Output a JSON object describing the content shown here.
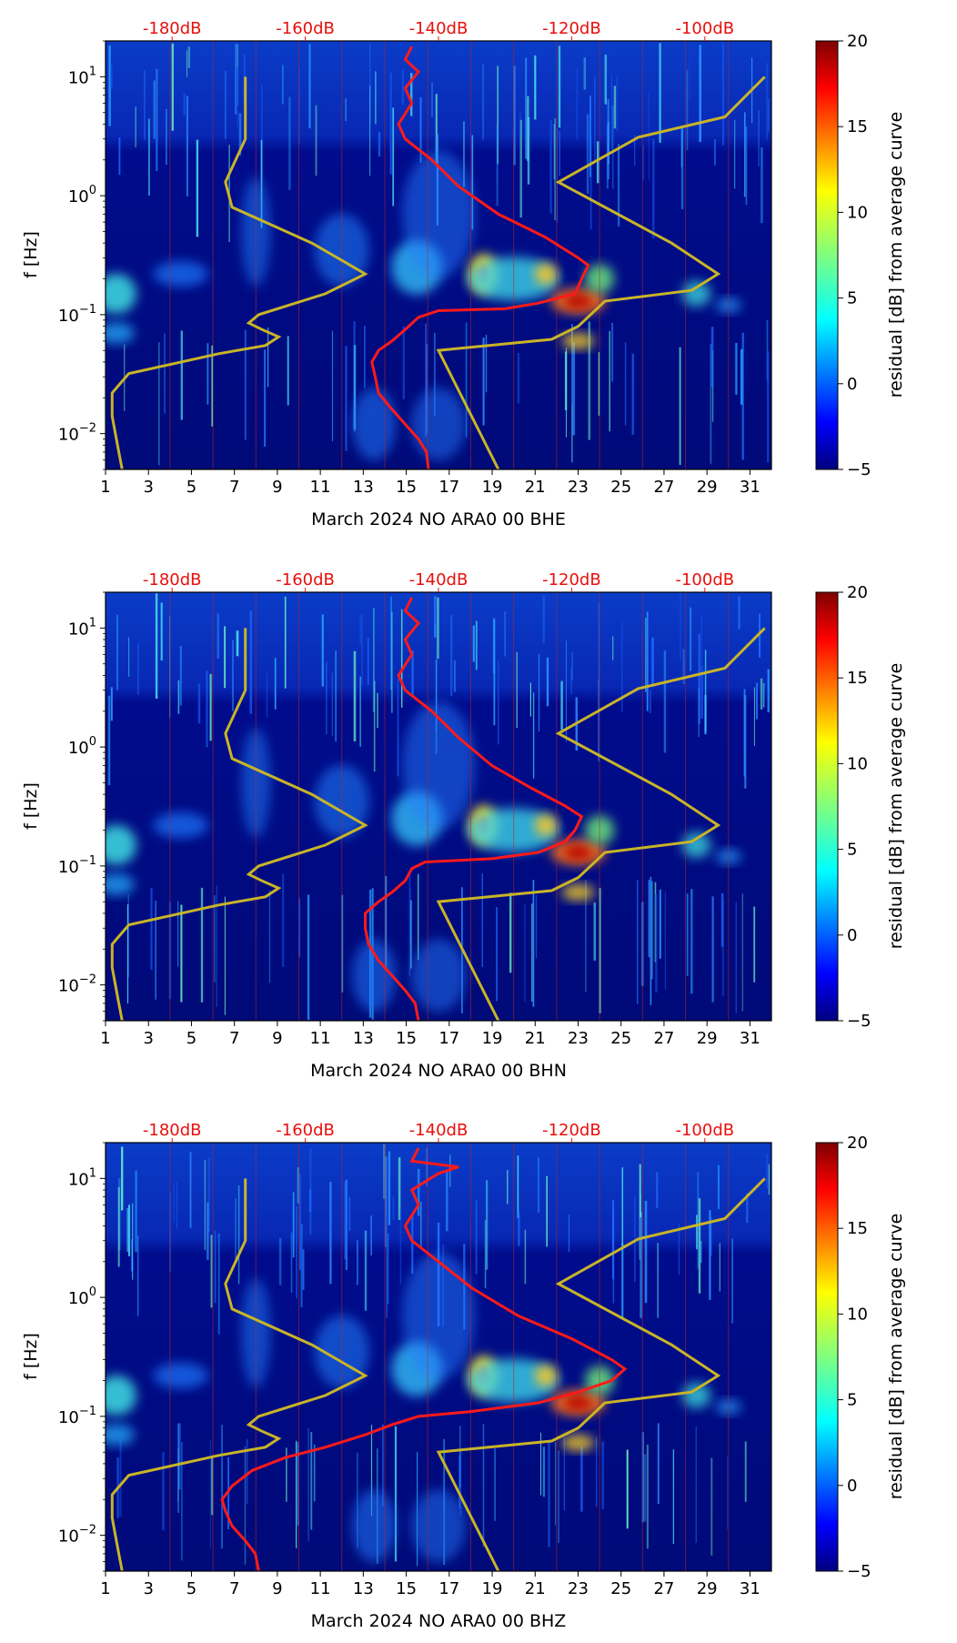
{
  "chart_data": [
    {
      "type": "heatmap",
      "title": "",
      "xlabel": "March 2024 NO ARA0 00 BHE",
      "ylabel": "f [Hz]",
      "x_ticks": [
        "1",
        "3",
        "5",
        "7",
        "9",
        "11",
        "13",
        "15",
        "17",
        "19",
        "21",
        "23",
        "25",
        "27",
        "29",
        "31"
      ],
      "x_range": [
        1,
        32
      ],
      "y_ticks": [
        {
          "base": "10",
          "exp": "1",
          "value": 10
        },
        {
          "base": "10",
          "exp": "0",
          "value": 1
        },
        {
          "base": "10",
          "exp": "−1",
          "value": 0.1
        },
        {
          "base": "10",
          "exp": "−2",
          "value": 0.01
        }
      ],
      "y_range": [
        0.005,
        20
      ],
      "y_scale": "log",
      "top_ticks": [
        "-180dB",
        "-160dB",
        "-140dB",
        "-120dB",
        "-100dB"
      ],
      "top_range_db": [
        -190,
        -90
      ],
      "colorbar": {
        "label": "residual [dB] from average curve",
        "ticks": [
          "20",
          "15",
          "10",
          "5",
          "0",
          "−5"
        ],
        "min": -5,
        "max": 20
      },
      "colors": {
        "average_curve": "#ff1a1a",
        "model_curve": "#c8b428",
        "axis_top_labels": "#e8100c"
      },
      "average_curve_db_vs_f": [
        [
          -141.5,
          0.005
        ],
        [
          -141.8,
          0.007
        ],
        [
          -143,
          0.009
        ],
        [
          -145,
          0.012
        ],
        [
          -147,
          0.016
        ],
        [
          -149,
          0.022
        ],
        [
          -149.5,
          0.03
        ],
        [
          -150,
          0.04
        ],
        [
          -149,
          0.05
        ],
        [
          -147,
          0.06
        ],
        [
          -145,
          0.075
        ],
        [
          -143,
          0.095
        ],
        [
          -140,
          0.108
        ],
        [
          -130,
          0.112
        ],
        [
          -125,
          0.125
        ],
        [
          -119.5,
          0.15
        ],
        [
          -118.5,
          0.2
        ],
        [
          -117.5,
          0.26
        ],
        [
          -119,
          0.3
        ],
        [
          -124,
          0.45
        ],
        [
          -131,
          0.7
        ],
        [
          -137,
          1.2
        ],
        [
          -141,
          2.0
        ],
        [
          -145,
          3.0
        ],
        [
          -146,
          4.0
        ],
        [
          -144,
          6
        ],
        [
          -145,
          8
        ],
        [
          -143,
          11
        ],
        [
          -145,
          14
        ],
        [
          -144,
          18
        ]
      ],
      "model_curves_db_vs_f": [
        {
          "name": "low",
          "points": [
            [
              -187.5,
              0.005
            ],
            [
              -188,
              0.007
            ],
            [
              -189,
              0.014
            ],
            [
              -189,
              0.022
            ],
            [
              -186.5,
              0.032
            ],
            [
              -173,
              0.047
            ],
            [
              -166,
              0.055
            ],
            [
              -164,
              0.065
            ],
            [
              -166.5,
              0.075
            ],
            [
              -168.5,
              0.085
            ],
            [
              -167,
              0.1
            ],
            [
              -157,
              0.15
            ],
            [
              -151,
              0.22
            ],
            [
              -159,
              0.4
            ],
            [
              -171,
              0.8
            ],
            [
              -172,
              1.3
            ],
            [
              -169,
              3
            ],
            [
              -169,
              10
            ]
          ]
        },
        {
          "name": "high",
          "points": [
            [
              -131,
              0.005
            ],
            [
              -140,
              0.05
            ],
            [
              -123,
              0.062
            ],
            [
              -119,
              0.08
            ],
            [
              -115,
              0.13
            ],
            [
              -102,
              0.16
            ],
            [
              -98,
              0.22
            ],
            [
              -105,
              0.4
            ],
            [
              -122,
              1.3
            ],
            [
              -110,
              3.1
            ],
            [
              -97,
              4.6
            ],
            [
              -91,
              10
            ]
          ]
        }
      ]
    },
    {
      "type": "heatmap",
      "title": "",
      "xlabel": "March 2024 NO ARA0 00 BHN",
      "ylabel": "f [Hz]",
      "x_ticks": [
        "1",
        "3",
        "5",
        "7",
        "9",
        "11",
        "13",
        "15",
        "17",
        "19",
        "21",
        "23",
        "25",
        "27",
        "29",
        "31"
      ],
      "x_range": [
        1,
        32
      ],
      "y_ticks": [
        {
          "base": "10",
          "exp": "1",
          "value": 10
        },
        {
          "base": "10",
          "exp": "0",
          "value": 1
        },
        {
          "base": "10",
          "exp": "−1",
          "value": 0.1
        },
        {
          "base": "10",
          "exp": "−2",
          "value": 0.01
        }
      ],
      "y_range": [
        0.005,
        20
      ],
      "y_scale": "log",
      "top_ticks": [
        "-180dB",
        "-160dB",
        "-140dB",
        "-120dB",
        "-100dB"
      ],
      "top_range_db": [
        -190,
        -90
      ],
      "colorbar": {
        "label": "residual [dB] from average curve",
        "ticks": [
          "20",
          "15",
          "10",
          "5",
          "0",
          "−5"
        ],
        "min": -5,
        "max": 20
      },
      "colors": {
        "average_curve": "#ff1a1a",
        "model_curve": "#c8b428",
        "axis_top_labels": "#e8100c"
      },
      "average_curve_db_vs_f": [
        [
          -143,
          0.005
        ],
        [
          -143.5,
          0.007
        ],
        [
          -145,
          0.009
        ],
        [
          -147,
          0.012
        ],
        [
          -149,
          0.016
        ],
        [
          -150.5,
          0.022
        ],
        [
          -151,
          0.03
        ],
        [
          -151,
          0.04
        ],
        [
          -149,
          0.05
        ],
        [
          -147,
          0.06
        ],
        [
          -145,
          0.075
        ],
        [
          -144,
          0.095
        ],
        [
          -142,
          0.108
        ],
        [
          -132,
          0.115
        ],
        [
          -125,
          0.13
        ],
        [
          -121,
          0.16
        ],
        [
          -119.5,
          0.2
        ],
        [
          -118.5,
          0.26
        ],
        [
          -121,
          0.32
        ],
        [
          -126,
          0.45
        ],
        [
          -132,
          0.7
        ],
        [
          -137,
          1.2
        ],
        [
          -141,
          2.0
        ],
        [
          -145,
          3.0
        ],
        [
          -146,
          4.0
        ],
        [
          -144,
          6
        ],
        [
          -145,
          8
        ],
        [
          -143,
          11
        ],
        [
          -145,
          14
        ],
        [
          -144,
          18
        ]
      ],
      "model_curves_db_vs_f": [
        {
          "name": "low",
          "points": [
            [
              -187.5,
              0.005
            ],
            [
              -188,
              0.007
            ],
            [
              -189,
              0.014
            ],
            [
              -189,
              0.022
            ],
            [
              -186.5,
              0.032
            ],
            [
              -173,
              0.047
            ],
            [
              -166,
              0.055
            ],
            [
              -164,
              0.065
            ],
            [
              -166.5,
              0.075
            ],
            [
              -168.5,
              0.085
            ],
            [
              -167,
              0.1
            ],
            [
              -157,
              0.15
            ],
            [
              -151,
              0.22
            ],
            [
              -159,
              0.4
            ],
            [
              -171,
              0.8
            ],
            [
              -172,
              1.3
            ],
            [
              -169,
              3
            ],
            [
              -169,
              10
            ]
          ]
        },
        {
          "name": "high",
          "points": [
            [
              -131,
              0.005
            ],
            [
              -140,
              0.05
            ],
            [
              -123,
              0.062
            ],
            [
              -119,
              0.08
            ],
            [
              -115,
              0.13
            ],
            [
              -102,
              0.16
            ],
            [
              -98,
              0.22
            ],
            [
              -105,
              0.4
            ],
            [
              -122,
              1.3
            ],
            [
              -110,
              3.1
            ],
            [
              -97,
              4.6
            ],
            [
              -91,
              10
            ]
          ]
        }
      ]
    },
    {
      "type": "heatmap",
      "title": "",
      "xlabel": "March 2024 NO ARA0 00 BHZ",
      "ylabel": "f [Hz]",
      "x_ticks": [
        "1",
        "3",
        "5",
        "7",
        "9",
        "11",
        "13",
        "15",
        "17",
        "19",
        "21",
        "23",
        "25",
        "27",
        "29",
        "31"
      ],
      "x_range": [
        1,
        32
      ],
      "y_ticks": [
        {
          "base": "10",
          "exp": "1",
          "value": 10
        },
        {
          "base": "10",
          "exp": "0",
          "value": 1
        },
        {
          "base": "10",
          "exp": "−1",
          "value": 0.1
        },
        {
          "base": "10",
          "exp": "−2",
          "value": 0.01
        }
      ],
      "y_range": [
        0.005,
        20
      ],
      "y_scale": "log",
      "top_ticks": [
        "-180dB",
        "-160dB",
        "-140dB",
        "-120dB",
        "-100dB"
      ],
      "top_range_db": [
        -190,
        -90
      ],
      "colorbar": {
        "label": "residual [dB] from average curve",
        "ticks": [
          "20",
          "15",
          "10",
          "5",
          "0",
          "−5"
        ],
        "min": -5,
        "max": 20
      },
      "colors": {
        "average_curve": "#ff1a1a",
        "model_curve": "#c8b428",
        "axis_top_labels": "#e8100c"
      },
      "average_curve_db_vs_f": [
        [
          -167,
          0.005
        ],
        [
          -167.5,
          0.007
        ],
        [
          -169,
          0.009
        ],
        [
          -171,
          0.012
        ],
        [
          -172,
          0.016
        ],
        [
          -172.5,
          0.02
        ],
        [
          -171,
          0.026
        ],
        [
          -168,
          0.035
        ],
        [
          -163,
          0.045
        ],
        [
          -157,
          0.055
        ],
        [
          -151,
          0.07
        ],
        [
          -147,
          0.085
        ],
        [
          -143,
          0.1
        ],
        [
          -135,
          0.11
        ],
        [
          -125,
          0.13
        ],
        [
          -119,
          0.16
        ],
        [
          -114,
          0.2
        ],
        [
          -112,
          0.25
        ],
        [
          -114,
          0.3
        ],
        [
          -120,
          0.45
        ],
        [
          -128,
          0.7
        ],
        [
          -135,
          1.2
        ],
        [
          -140,
          2.0
        ],
        [
          -144,
          3.0
        ],
        [
          -145,
          4.0
        ],
        [
          -143,
          6
        ],
        [
          -144,
          8
        ],
        [
          -140,
          11
        ],
        [
          -137,
          12.5
        ],
        [
          -144,
          14
        ],
        [
          -143,
          18
        ]
      ],
      "model_curves_db_vs_f": [
        {
          "name": "low",
          "points": [
            [
              -187.5,
              0.005
            ],
            [
              -188,
              0.007
            ],
            [
              -189,
              0.014
            ],
            [
              -189,
              0.022
            ],
            [
              -186.5,
              0.032
            ],
            [
              -173,
              0.047
            ],
            [
              -166,
              0.055
            ],
            [
              -164,
              0.065
            ],
            [
              -166.5,
              0.075
            ],
            [
              -168.5,
              0.085
            ],
            [
              -167,
              0.1
            ],
            [
              -157,
              0.15
            ],
            [
              -151,
              0.22
            ],
            [
              -159,
              0.4
            ],
            [
              -171,
              0.8
            ],
            [
              -172,
              1.3
            ],
            [
              -169,
              3
            ],
            [
              -169,
              10
            ]
          ]
        },
        {
          "name": "high",
          "points": [
            [
              -131,
              0.005
            ],
            [
              -140,
              0.05
            ],
            [
              -123,
              0.062
            ],
            [
              -119,
              0.08
            ],
            [
              -115,
              0.13
            ],
            [
              -102,
              0.16
            ],
            [
              -98,
              0.22
            ],
            [
              -105,
              0.4
            ],
            [
              -122,
              1.3
            ],
            [
              -110,
              3.1
            ],
            [
              -97,
              4.6
            ],
            [
              -91,
              10
            ]
          ]
        }
      ]
    }
  ]
}
